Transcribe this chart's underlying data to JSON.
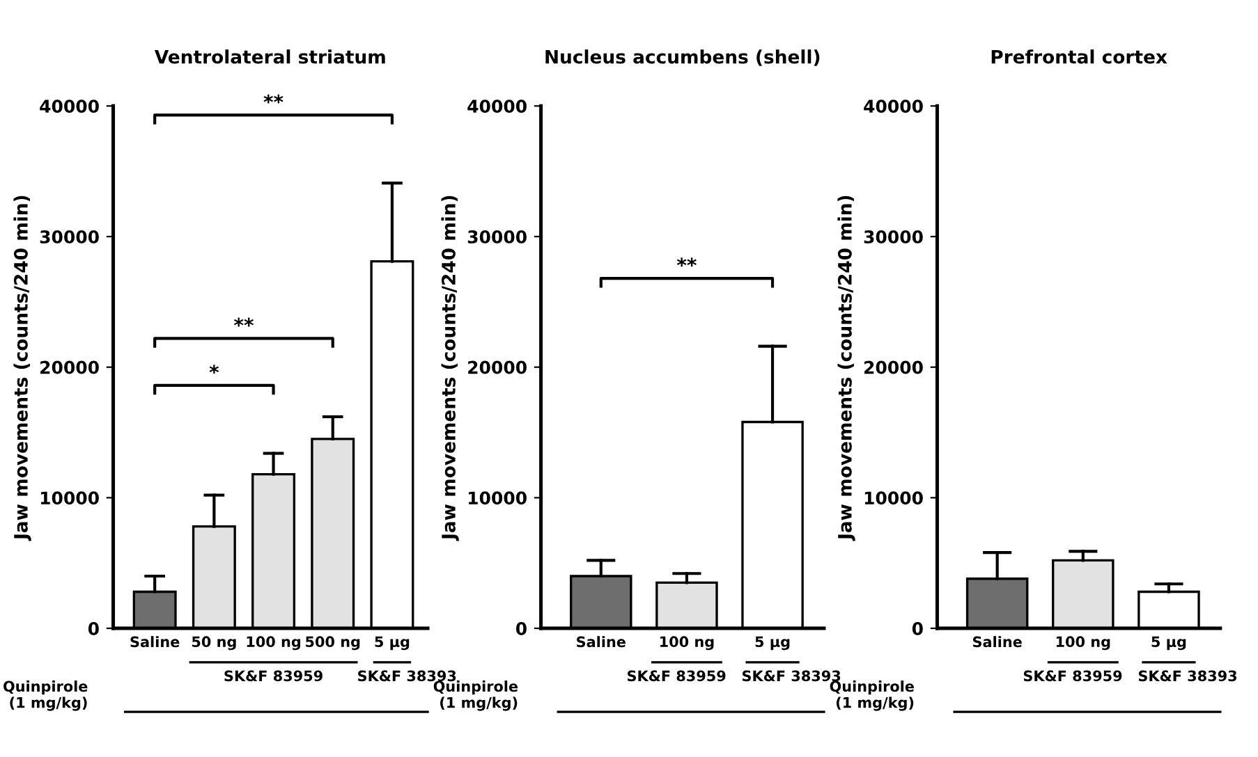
{
  "chart_data": [
    {
      "type": "bar",
      "title": "Ventrolateral striatum",
      "ylabel": "Jaw movements (counts/240 min)",
      "categories": [
        "Saline",
        "50 ng",
        "100 ng",
        "500 ng",
        "5 µg"
      ],
      "values": [
        2800,
        7800,
        11800,
        14500,
        28100
      ],
      "errors": [
        [
          2800,
          4000
        ],
        [
          7800,
          10200
        ],
        [
          11800,
          13400
        ],
        [
          14500,
          16200
        ],
        [
          28100,
          34100
        ]
      ],
      "colors": [
        "#6e6e6e",
        "#e2e2e2",
        "#e2e2e2",
        "#e2e2e2",
        "#ffffff"
      ],
      "ylim": [
        0,
        40000
      ],
      "yticks": [
        0,
        10000,
        20000,
        30000,
        40000
      ],
      "grid": false,
      "legend": false,
      "annotations": [
        "*",
        "**",
        "**",
        "Quinpirole\n(1 mg/kg)",
        "SK&F 83959",
        "SK&F 38393"
      ]
    },
    {
      "type": "bar",
      "title": "Nucleus accumbens (shell)",
      "ylabel": "Jaw movements (counts/240 min)",
      "categories": [
        "Saline",
        "100 ng",
        "5 µg"
      ],
      "values": [
        4000,
        3500,
        15800
      ],
      "errors": [
        [
          4000,
          5200
        ],
        [
          3500,
          4200
        ],
        [
          15800,
          21600
        ]
      ],
      "colors": [
        "#6e6e6e",
        "#e2e2e2",
        "#ffffff"
      ],
      "ylim": [
        0,
        40000
      ],
      "yticks": [
        0,
        10000,
        20000,
        30000,
        40000
      ],
      "grid": false,
      "legend": false,
      "annotations": [
        "**",
        "Quinpirole\n(1 mg/kg)",
        "SK&F 83959",
        "SK&F 38393"
      ]
    },
    {
      "type": "bar",
      "title": "Prefrontal cortex",
      "ylabel": "Jaw movements (counts/240 min)",
      "categories": [
        "Saline",
        "100 ng",
        "5 µg"
      ],
      "values": [
        3800,
        5200,
        2800
      ],
      "errors": [
        [
          3800,
          5800
        ],
        [
          5200,
          5900
        ],
        [
          2800,
          3400
        ]
      ],
      "colors": [
        "#6e6e6e",
        "#e2e2e2",
        "#ffffff"
      ],
      "ylim": [
        0,
        40000
      ],
      "yticks": [
        0,
        10000,
        20000,
        30000,
        40000
      ],
      "grid": false,
      "legend": false,
      "annotations": [
        "Quinpirole\n(1 mg/kg)",
        "SK&F 83959",
        "SK&F 38393"
      ]
    }
  ]
}
